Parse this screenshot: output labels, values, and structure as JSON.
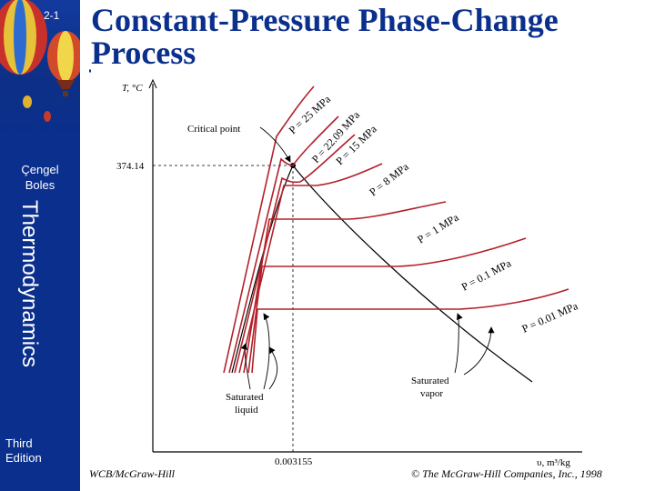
{
  "sidebar": {
    "page_number": "2-1",
    "authors": [
      "Çengel",
      "Boles"
    ],
    "subject": "Thermodynamics",
    "edition": [
      "Third",
      "Edition"
    ]
  },
  "title": "Constant-Pressure Phase-Change Process",
  "diagram": {
    "y_axis_label": "T, °C",
    "x_axis_label": "υ, m³/kg",
    "critical_temperature": "374.14",
    "critical_volume": "0.003155",
    "critical_point_label": "Critical point",
    "saturated_liquid_label": [
      "Saturated",
      "liquid"
    ],
    "saturated_vapor_label": [
      "Saturated",
      "vapor"
    ],
    "isobars": [
      {
        "label": "P = 25 MPa",
        "pressure_mpa": 25
      },
      {
        "label": "P = 22.09 MPa",
        "pressure_mpa": 22.09
      },
      {
        "label": "P = 15 MPa",
        "pressure_mpa": 15
      },
      {
        "label": "P = 8 MPa",
        "pressure_mpa": 8
      },
      {
        "label": "P = 1 MPa",
        "pressure_mpa": 1
      },
      {
        "label": "P = 0.1 MPa",
        "pressure_mpa": 0.1
      },
      {
        "label": "P = 0.01 MPa",
        "pressure_mpa": 0.01
      }
    ],
    "colors": {
      "isobar": "#b3202a",
      "axis": "#000000",
      "dome": "#000000"
    }
  },
  "footer": {
    "publisher_left": "WCB/McGraw-Hill",
    "copyright": "© The McGraw-Hill Companies, Inc., 1998"
  }
}
